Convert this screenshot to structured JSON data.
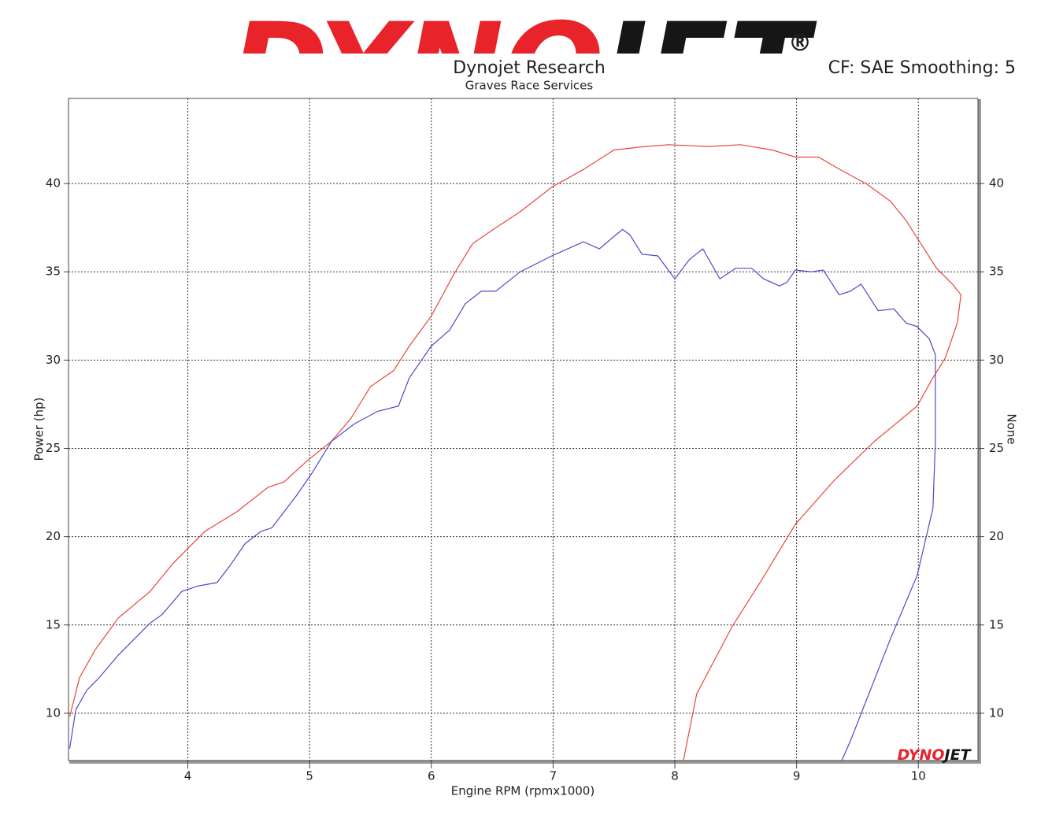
{
  "chart_data": {
    "type": "line",
    "logo": [
      "DYNO",
      "JET"
    ],
    "logo_mark": "®",
    "title": "Dynojet Research",
    "subtitle": "Graves Race Services",
    "annotation": "CF: SAE Smoothing: 5",
    "xlabel": "Engine RPM (rpmx1000)",
    "ylabel": "Power (hp)",
    "y2label": "None",
    "xlim": [
      3.02,
      10.49
    ],
    "ylim": [
      7.32,
      44.82
    ],
    "y2lim": [
      7.32,
      44.82
    ],
    "xticks": [
      4,
      5,
      6,
      7,
      8,
      9,
      10
    ],
    "yticks": [
      10,
      15,
      20,
      25,
      30,
      35,
      40
    ],
    "y2ticks": [
      10,
      15,
      20,
      25,
      30,
      35,
      40
    ],
    "grid": true,
    "series": [
      {
        "color": "#e8463c",
        "x": [
          3.03,
          3.11,
          3.24,
          3.43,
          3.69,
          3.88,
          4.14,
          4.4,
          4.66,
          4.79,
          4.98,
          5.18,
          5.34,
          5.5,
          5.69,
          5.82,
          6.0,
          6.18,
          6.34,
          6.53,
          6.73,
          6.99,
          7.25,
          7.5,
          7.76,
          7.95,
          8.28,
          8.54,
          8.8,
          8.99,
          9.18,
          9.38,
          9.57,
          9.77,
          9.9,
          10.02,
          10.15,
          10.28,
          10.35,
          10.32,
          10.22,
          10.12,
          9.99,
          9.64,
          9.31,
          8.99,
          8.7,
          8.47,
          8.18,
          8.07
        ],
        "values": [
          9.8,
          12.0,
          13.6,
          15.4,
          16.9,
          18.5,
          20.3,
          21.4,
          22.8,
          23.1,
          24.3,
          25.4,
          26.7,
          28.5,
          29.4,
          30.8,
          32.5,
          34.8,
          36.6,
          37.5,
          38.4,
          39.8,
          40.8,
          41.9,
          42.1,
          42.2,
          42.1,
          42.2,
          41.9,
          41.5,
          41.5,
          40.7,
          40.0,
          39.0,
          37.9,
          36.6,
          35.2,
          34.3,
          33.7,
          32.1,
          30.1,
          29.0,
          27.4,
          25.4,
          23.2,
          20.7,
          17.4,
          14.9,
          11.1,
          7.3
        ]
      },
      {
        "color": "#4a4ac8",
        "x": [
          3.03,
          3.08,
          3.17,
          3.27,
          3.43,
          3.69,
          3.79,
          3.95,
          4.08,
          4.24,
          4.34,
          4.47,
          4.6,
          4.69,
          4.89,
          5.02,
          5.18,
          5.37,
          5.56,
          5.73,
          5.82,
          6.0,
          6.15,
          6.28,
          6.41,
          6.53,
          6.73,
          6.99,
          7.12,
          7.25,
          7.38,
          7.57,
          7.63,
          7.73,
          7.86,
          8.0,
          8.12,
          8.23,
          8.37,
          8.5,
          8.63,
          8.73,
          8.86,
          8.92,
          8.99,
          9.12,
          9.22,
          9.35,
          9.44,
          9.53,
          9.67,
          9.8,
          9.9,
          9.99,
          10.09,
          10.14,
          10.14,
          10.12,
          9.99,
          9.77,
          9.44,
          9.37
        ],
        "values": [
          8.0,
          10.2,
          11.3,
          12.0,
          13.3,
          15.1,
          15.6,
          16.9,
          17.2,
          17.4,
          18.3,
          19.6,
          20.3,
          20.5,
          22.3,
          23.6,
          25.4,
          26.4,
          27.1,
          27.4,
          29.0,
          30.8,
          31.7,
          33.2,
          33.9,
          33.9,
          35.0,
          35.9,
          36.3,
          36.7,
          36.3,
          37.4,
          37.1,
          36.0,
          35.9,
          34.6,
          35.7,
          36.3,
          34.6,
          35.2,
          35.2,
          34.6,
          34.2,
          34.4,
          35.1,
          35.0,
          35.1,
          33.7,
          33.9,
          34.3,
          32.8,
          32.9,
          32.1,
          31.9,
          31.2,
          30.3,
          25.4,
          21.6,
          17.8,
          14.2,
          8.4,
          7.3
        ]
      }
    ]
  }
}
